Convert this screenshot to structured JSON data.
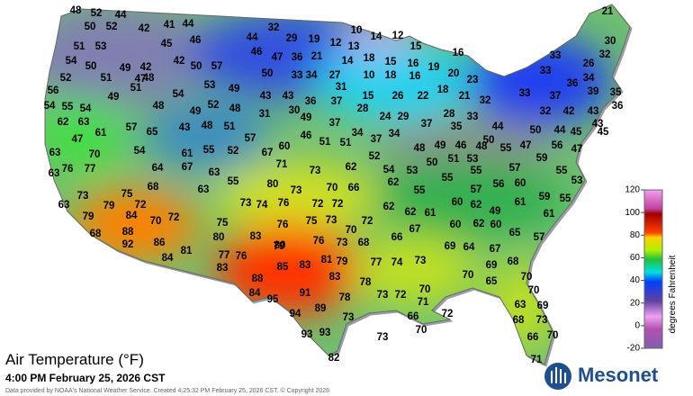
{
  "title": "Air Temperature (°F)",
  "timestamp": "4:00 PM February 25, 2026 CST",
  "credit": "Data provided by NOAA's National Weather Service. Created 4:25:32 PM February 25, 2026 CST. © Copyright 2026",
  "legend": {
    "title": "degrees Fahrenheit",
    "ticks": [
      120,
      100,
      80,
      60,
      40,
      20,
      0,
      -20
    ]
  },
  "logo": "Mesonet",
  "stations": [
    48,
    52,
    44,
    21,
    50,
    52,
    42,
    41,
    44,
    32,
    10,
    14,
    12,
    44,
    29,
    19,
    12,
    13,
    15,
    51,
    53,
    45,
    46,
    16,
    33,
    30,
    54,
    50,
    49,
    42,
    42,
    50,
    57,
    46,
    47,
    36,
    21,
    14,
    18,
    15,
    16,
    19,
    32,
    52,
    51,
    48,
    34,
    27,
    10,
    18,
    16,
    20,
    23,
    33,
    26,
    34,
    49,
    51,
    47,
    53,
    49,
    50,
    33,
    31,
    56,
    54,
    43,
    43,
    36,
    37,
    15,
    26,
    22,
    18,
    21,
    32,
    33,
    37,
    36,
    39,
    35,
    54,
    55,
    54,
    48,
    52,
    48,
    49,
    30,
    28,
    31,
    33,
    28,
    24,
    29,
    32,
    42,
    43,
    36,
    62,
    63,
    57,
    65,
    43,
    48,
    51,
    49,
    37,
    34,
    37,
    35,
    44,
    50,
    44,
    45,
    43,
    45,
    47,
    61,
    57,
    46,
    51,
    37,
    34,
    51,
    50,
    55,
    47,
    56,
    47,
    63,
    70,
    54,
    55,
    52,
    67,
    60,
    52,
    48,
    49,
    46,
    48,
    63,
    76,
    77,
    64,
    61,
    67,
    63,
    71,
    73,
    62,
    54,
    53,
    50,
    51,
    53,
    55,
    57,
    59,
    55,
    73,
    75,
    68,
    55,
    80,
    73,
    63,
    70,
    66,
    62,
    55,
    55,
    57,
    56,
    60,
    53,
    63,
    79,
    72,
    70,
    72,
    73,
    74,
    76,
    72,
    72,
    61,
    59,
    55,
    79,
    84,
    75,
    76,
    75,
    73,
    72,
    62,
    62,
    61,
    60,
    62,
    49,
    61,
    68,
    88,
    80,
    83,
    70,
    66,
    67,
    60,
    62,
    60,
    65,
    57,
    92,
    86,
    80,
    76,
    73,
    68,
    69,
    64,
    67,
    84,
    81,
    77,
    76,
    79,
    83,
    85,
    83,
    81,
    79,
    77,
    74,
    73,
    69,
    68,
    88,
    83,
    78,
    70,
    65,
    70,
    84,
    95,
    91,
    78,
    73,
    72,
    70,
    70,
    94,
    89,
    66,
    71,
    72,
    63,
    69,
    73,
    70,
    68,
    73,
    93,
    93,
    73,
    66,
    70,
    82,
    71
  ]
}
